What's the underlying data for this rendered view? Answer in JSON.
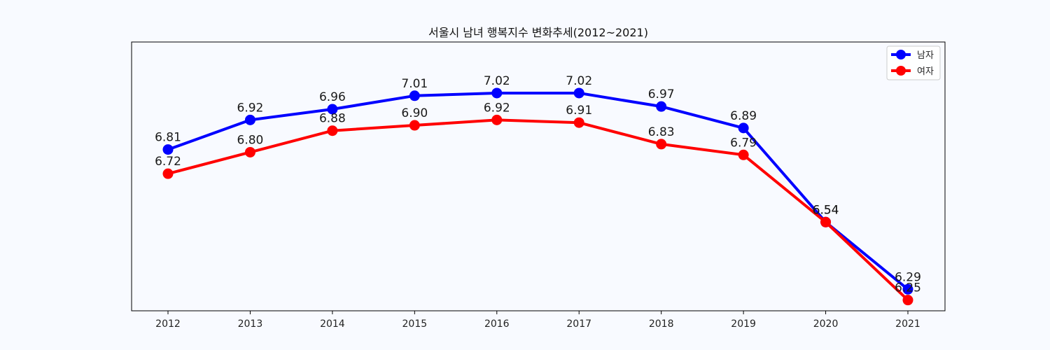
{
  "chart_data": {
    "type": "line",
    "title": "서울시 남녀 행복지수 변화추세(2012~2021)",
    "x": [
      "2012",
      "2013",
      "2014",
      "2015",
      "2016",
      "2017",
      "2018",
      "2019",
      "2020",
      "2021"
    ],
    "series": [
      {
        "name": "남자",
        "color": "#0000ff",
        "values": [
          6.81,
          6.92,
          6.96,
          7.01,
          7.02,
          7.02,
          6.97,
          6.89,
          6.54,
          6.29
        ],
        "labels": [
          "6.81",
          "6.92",
          "6.96",
          "7.01",
          "7.02",
          "7.02",
          "6.97",
          "6.89",
          "6.54",
          "6.29"
        ]
      },
      {
        "name": "여자",
        "color": "#ff0000",
        "values": [
          6.72,
          6.8,
          6.88,
          6.9,
          6.92,
          6.91,
          6.83,
          6.79,
          6.54,
          6.25
        ],
        "labels": [
          "6.72",
          "6.80",
          "6.88",
          "6.90",
          "6.92",
          "6.91",
          "6.83",
          "6.79",
          "6.54",
          "6.25"
        ]
      }
    ],
    "ylim": [
      6.21,
      7.21
    ],
    "grid": false,
    "legend": "top-right",
    "yticks_visible": false
  }
}
